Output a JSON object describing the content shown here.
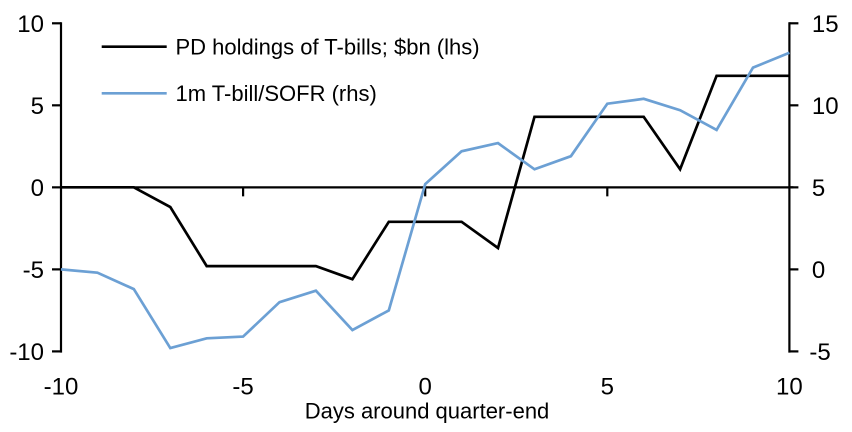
{
  "chart_data": {
    "type": "line",
    "title": "",
    "xlabel": "Days around quarter-end",
    "ylabel_left": "",
    "ylabel_right": "",
    "grid": false,
    "legend_position": "top-left",
    "background_color": "#ffffff",
    "axis_color": "#000000",
    "x": [
      -10,
      -9,
      -8,
      -7,
      -6,
      -5,
      -4,
      -3,
      -2,
      -1,
      0,
      1,
      2,
      3,
      4,
      5,
      6,
      7,
      8,
      9,
      10
    ],
    "series": [
      {
        "name": "PD holdings of T-bills; $bn (lhs)",
        "axis": "left",
        "color": "#000000",
        "values": [
          0,
          0,
          0,
          -1.2,
          -4.8,
          -4.8,
          -4.8,
          -4.8,
          -5.6,
          -2.1,
          -2.1,
          -2.1,
          -3.7,
          4.3,
          4.3,
          4.3,
          4.3,
          1.1,
          6.8,
          6.8,
          6.8
        ]
      },
      {
        "name": "1m T-bill/SOFR (rhs)",
        "axis": "right",
        "color": "#6CA0D4",
        "values": [
          0.0,
          -0.2,
          -1.2,
          -4.8,
          -4.2,
          -4.1,
          -2.0,
          -1.3,
          -3.7,
          -2.5,
          5.2,
          7.2,
          7.7,
          6.1,
          6.9,
          10.1,
          10.4,
          9.7,
          8.5,
          12.3,
          13.2
        ]
      }
    ],
    "left_axis": {
      "range": [
        -10,
        10
      ],
      "ticks": [
        10,
        5,
        0,
        -5,
        -10
      ]
    },
    "right_axis": {
      "range": [
        -5,
        15
      ],
      "ticks": [
        15,
        10,
        5,
        0,
        -5
      ]
    },
    "x_axis": {
      "range": [
        -10,
        10
      ],
      "ticks": [
        -10,
        -5,
        0,
        5,
        10
      ]
    }
  }
}
